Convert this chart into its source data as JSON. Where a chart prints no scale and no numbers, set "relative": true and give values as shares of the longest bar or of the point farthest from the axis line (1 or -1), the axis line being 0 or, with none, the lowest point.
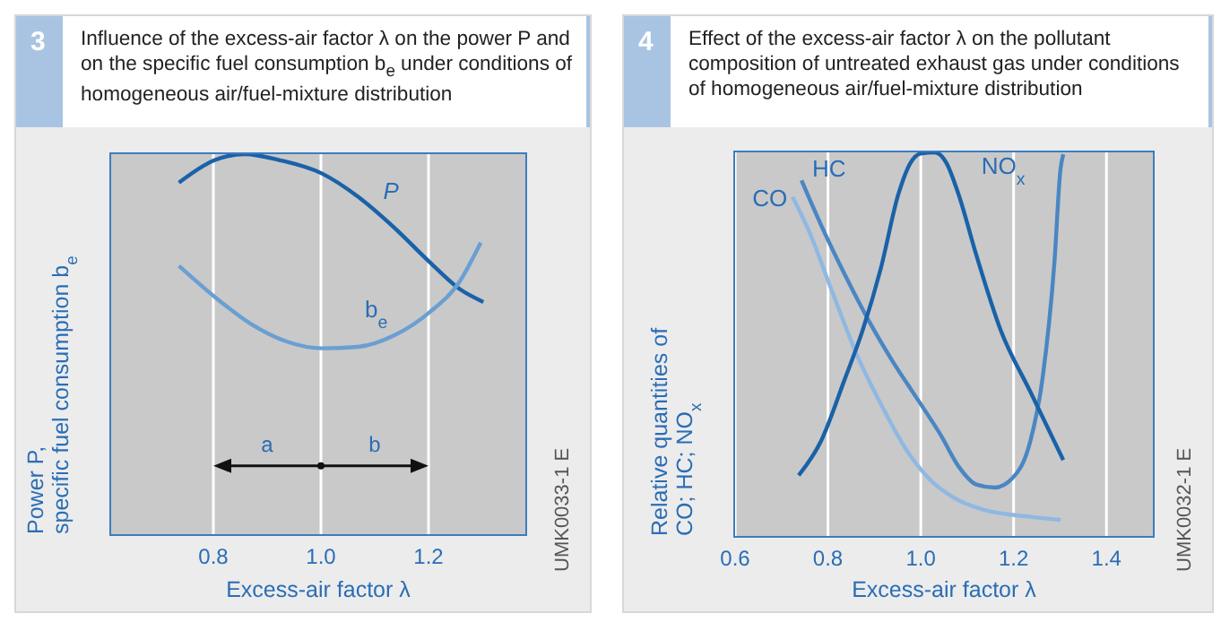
{
  "chart_data": [
    {
      "type": "line",
      "title": "Influence of the excess-air factor λ on the power P and on the specific fuel consumption b$_{e}$ under conditions of homogeneous air/fuel-mixture distribution",
      "xlabel": "Excess-air factor  λ",
      "ylabel": "Power  P,\nspecific fuel consumption  b$_{e}$",
      "relative": true,
      "xlim": [
        0.61,
        1.38
      ],
      "xticks": [
        {
          "value": 0.8,
          "label": "0.8"
        },
        {
          "value": 1.0,
          "label": "1.0"
        },
        {
          "value": 1.2,
          "label": "1.2"
        }
      ],
      "grid": "x",
      "marker": "none",
      "annotations": [
        "3",
        "UMK0033-1 E",
        "a",
        "b"
      ],
      "series": [
        {
          "name": "P",
          "color": "#1a62a8",
          "x": [
            0.736,
            0.802,
            0.858,
            0.924,
            1.002,
            1.069,
            1.136,
            1.202,
            1.258,
            1.302
          ],
          "values": [
            0.925,
            0.984,
            1.0,
            0.984,
            0.949,
            0.888,
            0.807,
            0.716,
            0.645,
            0.611
          ]
        },
        {
          "name": "b$_{e}$",
          "color": "#6a9fd2",
          "x": [
            0.736,
            0.802,
            0.869,
            0.936,
            1.002,
            1.069,
            1.136,
            1.202,
            1.258,
            1.297
          ],
          "values": [
            0.706,
            0.625,
            0.554,
            0.507,
            0.489,
            0.493,
            0.523,
            0.584,
            0.665,
            0.767
          ]
        }
      ]
    },
    {
      "type": "line",
      "title": "Effect of the excess-air factor λ on the pollutant composition of untreated exhaust gas under conditions of homogeneous air/fuel-mixture distribution",
      "xlabel": "Excess-air factor  λ",
      "ylabel": "Relative quantities of\nCO;  HC;  NO$_{x}$",
      "relative": true,
      "xlim": [
        0.6,
        1.5
      ],
      "xticks": [
        {
          "value": 0.6,
          "label": "0.6"
        },
        {
          "value": 0.8,
          "label": "0.8"
        },
        {
          "value": 1.0,
          "label": "1.0"
        },
        {
          "value": 1.2,
          "label": "1.2"
        },
        {
          "value": 1.4,
          "label": "1.4"
        }
      ],
      "grid": "x",
      "marker": "none",
      "annotations": [
        "4",
        "UMK0032-1 E"
      ],
      "series": [
        {
          "name": "CO",
          "color": "#8fb8e2",
          "x": [
            0.724,
            0.759,
            0.81,
            0.862,
            0.914,
            0.965,
            1.017,
            1.068,
            1.133,
            1.236,
            1.301
          ],
          "values": [
            0.884,
            0.795,
            0.634,
            0.473,
            0.344,
            0.232,
            0.15,
            0.102,
            0.069,
            0.05,
            0.042
          ]
        },
        {
          "name": "HC",
          "color": "#4a86c2",
          "x": [
            0.743,
            0.785,
            0.836,
            0.888,
            0.939,
            0.991,
            1.043,
            1.081,
            1.12,
            1.159,
            1.197,
            1.236,
            1.262,
            1.288,
            1.301,
            1.307
          ],
          "values": [
            0.927,
            0.811,
            0.682,
            0.561,
            0.456,
            0.36,
            0.263,
            0.182,
            0.134,
            0.126,
            0.15,
            0.247,
            0.408,
            0.715,
            0.956,
            0.995
          ]
        },
        {
          "name": "NO$_{x}$",
          "color": "#1a62a8",
          "x": [
            0.737,
            0.785,
            0.836,
            0.875,
            0.914,
            0.952,
            0.978,
            1.0,
            1.03,
            1.055,
            1.081,
            1.12,
            1.172,
            1.236,
            1.307
          ],
          "values": [
            0.158,
            0.247,
            0.408,
            0.537,
            0.698,
            0.892,
            0.973,
            0.997,
            1.0,
            0.973,
            0.892,
            0.731,
            0.537,
            0.376,
            0.198
          ]
        }
      ]
    }
  ]
}
